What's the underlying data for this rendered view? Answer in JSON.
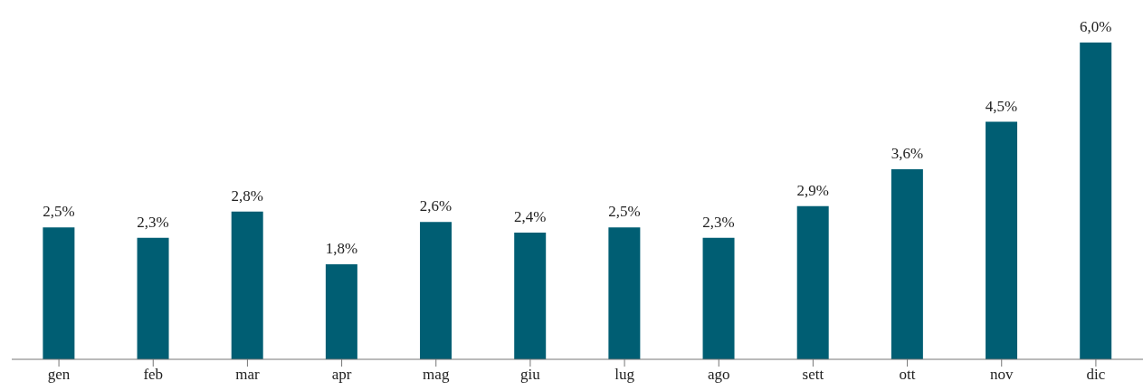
{
  "chart_data": {
    "type": "bar",
    "categories": [
      "gen",
      "feb",
      "mar",
      "apr",
      "mag",
      "giu",
      "lug",
      "ago",
      "sett",
      "ott",
      "nov",
      "dic"
    ],
    "values": [
      2.5,
      2.3,
      2.8,
      1.8,
      2.6,
      2.4,
      2.5,
      2.3,
      2.9,
      3.6,
      4.5,
      6.0
    ],
    "value_labels": [
      "2,5%",
      "2,3%",
      "2,8%",
      "1,8%",
      "2,6%",
      "2,4%",
      "2,5%",
      "2,3%",
      "2,9%",
      "3,6%",
      "4,5%",
      "6,0%"
    ],
    "color": "#005e73",
    "grid": false,
    "legend": false
  }
}
